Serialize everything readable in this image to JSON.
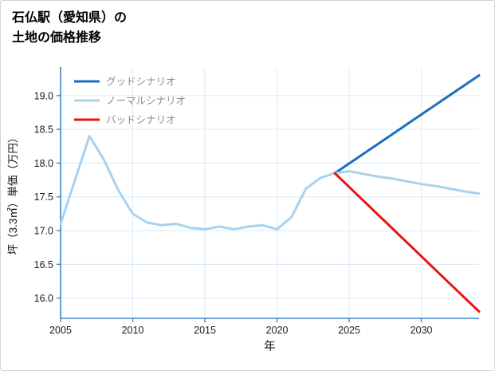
{
  "header": {
    "title_line1": "石仏駅（愛知県）の",
    "title_line2": "土地の価格推移"
  },
  "chart_data": {
    "type": "line",
    "title": "石仏駅（愛知県）の土地の価格推移",
    "xlabel": "年",
    "ylabel": "坪（3.3㎡）単価（万円）",
    "xlim": [
      2005,
      2034
    ],
    "ylim": [
      15.7,
      19.4
    ],
    "xticks": [
      2005,
      2010,
      2015,
      2020,
      2025,
      2030
    ],
    "yticks": [
      16.0,
      16.5,
      17.0,
      17.5,
      18.0,
      18.5,
      19.0
    ],
    "grid": true,
    "legend_position": "upper-left",
    "colors": {
      "axis": "#3d86c6",
      "grid": "#d9eaf7",
      "tick_label": "#1a1a1a",
      "legend_text": "#8c8c8c",
      "good": "#1b6ec2",
      "normal": "#a8d2f0",
      "bad": "#e8150f"
    },
    "series": [
      {
        "name": "グッドシナリオ",
        "key": "good",
        "color": "#1b6ec2",
        "x": [
          2024,
          2026,
          2028,
          2030,
          2032,
          2034
        ],
        "y": [
          17.85,
          18.14,
          18.43,
          18.72,
          19.01,
          19.3
        ]
      },
      {
        "name": "ノーマルシナリオ",
        "key": "normal",
        "color": "#a8d2f0",
        "x": [
          2005,
          2006,
          2007,
          2008,
          2009,
          2010,
          2011,
          2012,
          2013,
          2014,
          2015,
          2016,
          2017,
          2018,
          2019,
          2020,
          2021,
          2022,
          2023,
          2024,
          2025,
          2026,
          2027,
          2028,
          2029,
          2030,
          2031,
          2032,
          2033,
          2034
        ],
        "y": [
          17.1,
          17.75,
          18.4,
          18.05,
          17.6,
          17.25,
          17.12,
          17.08,
          17.1,
          17.04,
          17.02,
          17.06,
          17.02,
          17.06,
          17.08,
          17.02,
          17.2,
          17.62,
          17.78,
          17.85,
          17.88,
          17.84,
          17.8,
          17.77,
          17.73,
          17.69,
          17.66,
          17.62,
          17.58,
          17.55
        ]
      },
      {
        "name": "バッドシナリオ",
        "key": "bad",
        "color": "#e8150f",
        "x": [
          2024,
          2026,
          2028,
          2030,
          2032,
          2034
        ],
        "y": [
          17.85,
          17.44,
          17.03,
          16.62,
          16.21,
          15.8
        ]
      }
    ]
  }
}
